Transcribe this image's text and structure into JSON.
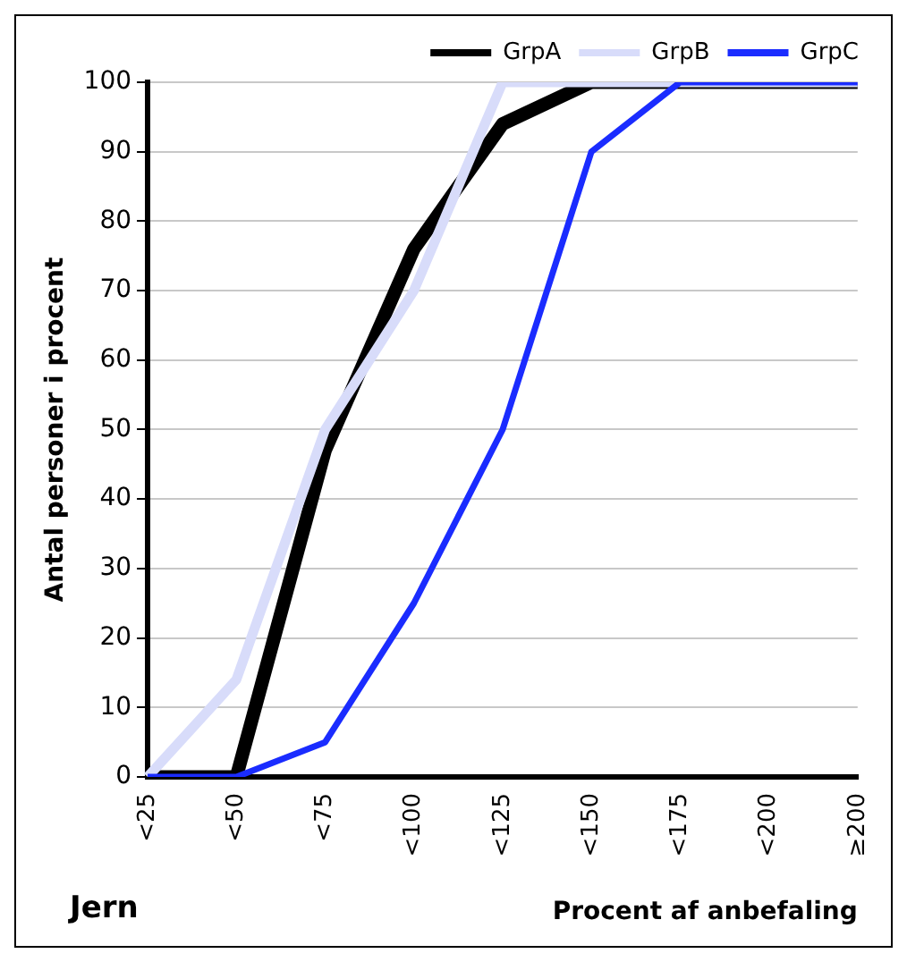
{
  "chart_data": {
    "type": "line",
    "ylabel": "Antal personer i procent",
    "xlabel": "Procent af anbefaling",
    "annotations": [
      "Jern"
    ],
    "categories": [
      "<25",
      "<50",
      "<75",
      "<100",
      "<125",
      "<150",
      "<175",
      "<200",
      "≥200"
    ],
    "series": [
      {
        "name": "GrpA",
        "color": "#000000",
        "values": [
          0,
          0,
          47,
          76,
          94,
          100,
          100,
          100,
          100
        ]
      },
      {
        "name": "GrpB",
        "color": "#d8dcfa",
        "values": [
          0,
          14,
          50,
          70,
          100,
          100,
          100,
          100,
          100
        ]
      },
      {
        "name": "GrpC",
        "color": "#1a2cff",
        "values": [
          0,
          0,
          5,
          25,
          50,
          90,
          100,
          100,
          100
        ]
      }
    ],
    "ylim": [
      0,
      100
    ],
    "yticks": [
      0,
      10,
      20,
      30,
      40,
      50,
      60,
      70,
      80,
      90,
      100
    ],
    "grid": "y",
    "legend": "top",
    "marker": "none",
    "line_style": "solid"
  }
}
